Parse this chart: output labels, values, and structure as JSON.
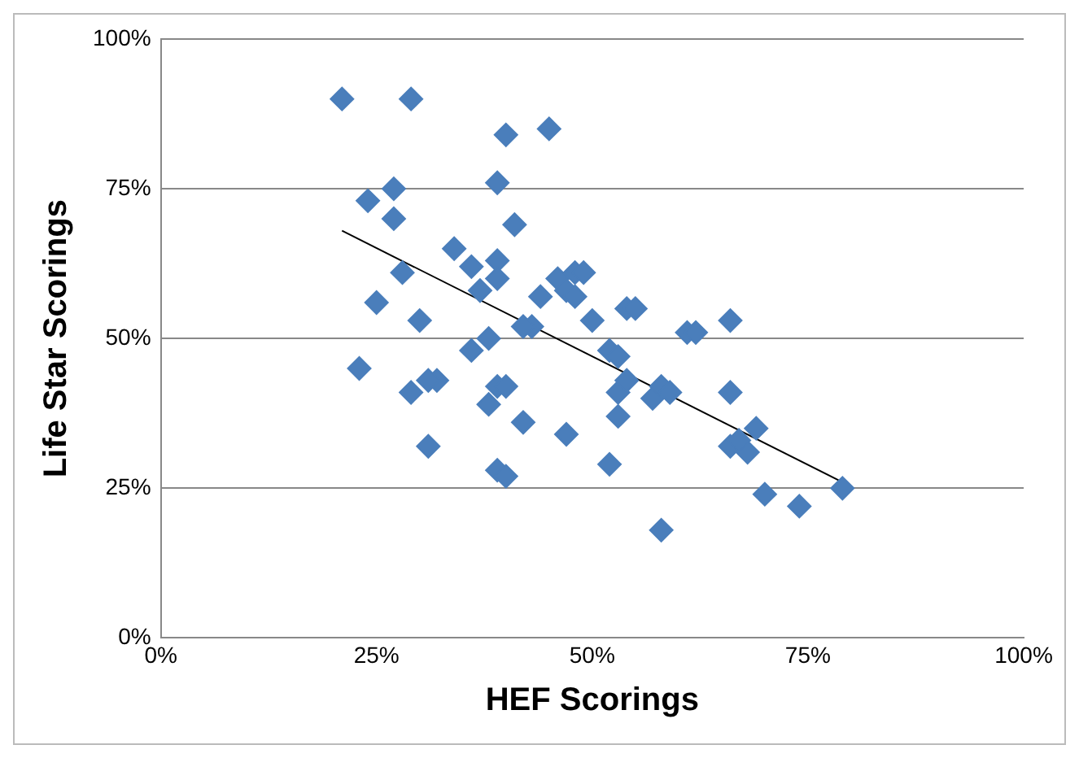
{
  "chart_data": {
    "type": "scatter",
    "xlabel": "HEF Scorings",
    "ylabel": "Life Star Scorings",
    "xlim": [
      0,
      100
    ],
    "ylim": [
      0,
      100
    ],
    "xticks": [
      {
        "value": 0,
        "label": "0%"
      },
      {
        "value": 25,
        "label": "25%"
      },
      {
        "value": 50,
        "label": "50%"
      },
      {
        "value": 75,
        "label": "75%"
      },
      {
        "value": 100,
        "label": "100%"
      }
    ],
    "yticks": [
      {
        "value": 0,
        "label": "0%"
      },
      {
        "value": 25,
        "label": "25%"
      },
      {
        "value": 50,
        "label": "50%"
      },
      {
        "value": 75,
        "label": "75%"
      },
      {
        "value": 100,
        "label": "100%"
      }
    ],
    "grid": "y",
    "legend": false,
    "marker": "diamond",
    "series": [
      {
        "color": "#4a7ebb",
        "x": [
          21,
          29,
          40,
          45,
          39,
          27,
          24,
          27,
          41,
          34,
          28,
          39,
          36,
          39,
          46,
          48,
          49,
          47,
          44,
          48,
          37,
          25,
          50,
          54,
          55,
          52,
          30,
          43,
          42,
          38,
          36,
          53,
          61,
          62,
          66,
          23,
          32,
          31,
          29,
          39,
          40,
          38,
          42,
          53,
          54,
          57,
          58,
          59,
          53,
          66,
          69,
          47,
          52,
          39,
          40,
          31,
          66,
          68,
          67,
          70,
          74,
          79,
          58
        ],
        "values": [
          90,
          90,
          84,
          85,
          76,
          75,
          73,
          70,
          69,
          65,
          61,
          63,
          62,
          60,
          60,
          61,
          61,
          58,
          57,
          57,
          58,
          56,
          53,
          55,
          55,
          48,
          53,
          52,
          52,
          50,
          48,
          47,
          51,
          51,
          53,
          45,
          43,
          43,
          41,
          42,
          42,
          39,
          36,
          41,
          43,
          40,
          42,
          41,
          37,
          41,
          35,
          34,
          29,
          28,
          27,
          32,
          32,
          31,
          33,
          24,
          22,
          25,
          18
        ]
      },
      {
        "type": "line",
        "color": "#000000",
        "marker": "none",
        "x": [
          21,
          79
        ],
        "values": [
          68,
          26
        ]
      }
    ]
  }
}
